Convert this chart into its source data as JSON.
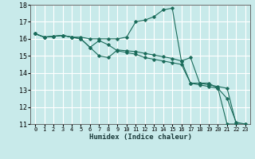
{
  "title": "",
  "xlabel": "Humidex (Indice chaleur)",
  "ylabel": "",
  "xlim": [
    -0.5,
    23.5
  ],
  "ylim": [
    11,
    18
  ],
  "yticks": [
    11,
    12,
    13,
    14,
    15,
    16,
    17,
    18
  ],
  "xticks": [
    0,
    1,
    2,
    3,
    4,
    5,
    6,
    7,
    8,
    9,
    10,
    11,
    12,
    13,
    14,
    15,
    16,
    17,
    18,
    19,
    20,
    21,
    22,
    23
  ],
  "background_color": "#c8eaea",
  "plot_bg_color": "#c8eaea",
  "line_color": "#1a6b5a",
  "grid_color": "#ffffff",
  "figsize": [
    3.2,
    2.0
  ],
  "dpi": 100,
  "series": [
    [
      16.3,
      16.1,
      16.15,
      16.2,
      16.1,
      16.1,
      16.0,
      16.0,
      16.0,
      16.0,
      16.1,
      17.0,
      17.1,
      17.3,
      17.7,
      17.8,
      14.7,
      14.9,
      13.4,
      13.4,
      13.1,
      11.0,
      11.0,
      null
    ],
    [
      16.3,
      16.1,
      16.15,
      16.2,
      16.1,
      16.0,
      15.5,
      15.0,
      14.9,
      15.35,
      15.3,
      15.25,
      15.15,
      15.05,
      14.95,
      14.85,
      14.7,
      13.4,
      13.3,
      13.2,
      13.1,
      12.5,
      11.1,
      11.0
    ],
    [
      16.3,
      16.1,
      16.15,
      16.2,
      16.1,
      16.0,
      15.5,
      15.9,
      15.65,
      15.3,
      15.2,
      15.1,
      14.9,
      14.8,
      14.7,
      14.6,
      14.5,
      13.4,
      13.4,
      13.3,
      13.2,
      13.1,
      11.0,
      11.0
    ]
  ]
}
